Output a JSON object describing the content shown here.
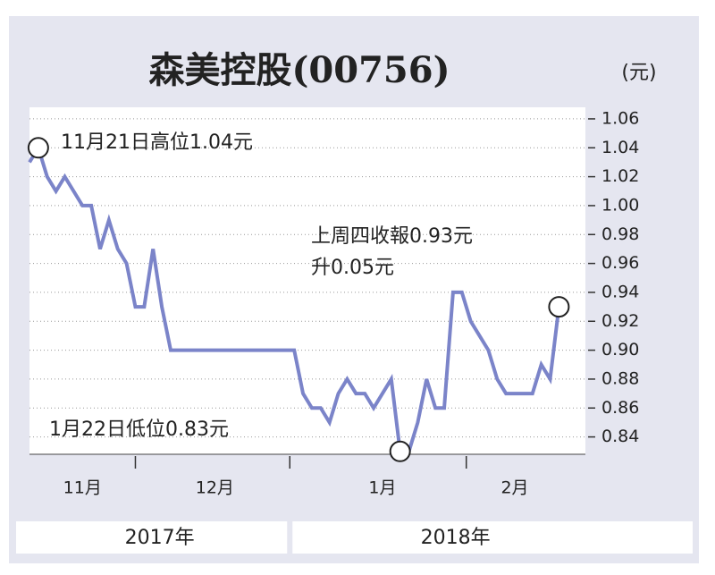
{
  "chart_data": {
    "type": "line",
    "title": "森美控股(00756)",
    "unit": "(元)",
    "x": [
      0,
      1,
      2,
      3,
      4,
      5,
      6,
      7,
      8,
      9,
      10,
      11,
      12,
      13,
      14,
      15,
      16,
      17,
      18,
      19,
      20,
      21,
      22,
      23,
      24,
      25,
      26,
      27,
      28,
      29,
      30,
      31,
      32,
      33,
      34,
      35,
      36,
      37,
      38,
      39,
      40,
      41,
      42,
      43,
      44,
      45,
      46,
      47,
      48,
      49,
      50,
      51,
      52,
      53,
      54,
      55,
      56,
      57,
      58,
      59,
      60
    ],
    "series": [
      {
        "name": "森美控股",
        "color": "#7b84c9",
        "values": [
          1.03,
          1.04,
          1.02,
          1.01,
          1.02,
          1.01,
          1.0,
          1.0,
          0.97,
          0.99,
          0.97,
          0.96,
          0.93,
          0.93,
          0.97,
          0.93,
          0.9,
          0.9,
          0.9,
          0.9,
          0.9,
          0.9,
          0.9,
          0.9,
          0.9,
          0.9,
          0.9,
          0.9,
          0.9,
          0.9,
          0.9,
          0.87,
          0.86,
          0.86,
          0.85,
          0.87,
          0.88,
          0.87,
          0.87,
          0.86,
          0.87,
          0.88,
          0.83,
          0.83,
          0.85,
          0.88,
          0.86,
          0.86,
          0.94,
          0.94,
          0.92,
          0.91,
          0.9,
          0.88,
          0.87,
          0.87,
          0.87,
          0.87,
          0.89,
          0.88,
          0.93
        ]
      }
    ],
    "xlim": [
      0,
      63
    ],
    "xticks": [
      {
        "value": 6,
        "label": "11月"
      },
      {
        "value": 21,
        "label": "12月"
      },
      {
        "value": 40,
        "label": "1月"
      },
      {
        "value": 55,
        "label": "2月"
      }
    ],
    "month_boundaries": [
      12,
      29.5,
      49.5
    ],
    "ylim": [
      0.828,
      1.068
    ],
    "yticks": [
      1.06,
      1.04,
      1.02,
      {
        "value": 1,
        "label": "1.00"
      },
      0.98,
      0.96,
      0.94,
      0.92,
      {
        "value": 0.9,
        "label": "0.90"
      },
      0.88,
      0.86,
      0.84
    ],
    "grid": true,
    "years": [
      {
        "label": "2017年",
        "from": 0,
        "to": 29.5
      },
      {
        "label": "2018年",
        "from": 29.5,
        "to": 63
      }
    ],
    "annotations": [
      {
        "text": "11月21日高位1.04元",
        "point": 1
      },
      {
        "text": "1月22日低位0.83元",
        "point": 42
      },
      {
        "text": "上周四收報0.93元",
        "point": 60
      },
      {
        "text": "升0.05元",
        "point": 60
      }
    ]
  }
}
